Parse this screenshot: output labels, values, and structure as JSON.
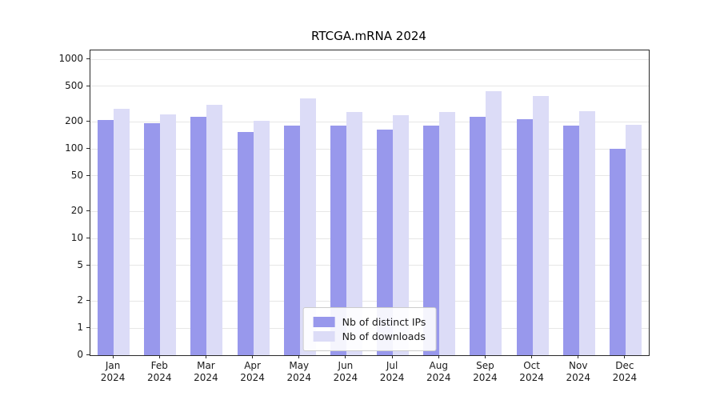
{
  "chart_data": {
    "type": "bar",
    "title": "RTCGA.mRNA 2024",
    "categories": [
      "Jan",
      "Feb",
      "Mar",
      "Apr",
      "May",
      "Jun",
      "Jul",
      "Aug",
      "Sep",
      "Oct",
      "Nov",
      "Dec"
    ],
    "year_label": "2024",
    "series": [
      {
        "name": "Nb of distinct IPs",
        "color": "#9898ec",
        "values": [
          210,
          195,
          230,
          155,
          180,
          180,
          165,
          180,
          230,
          215,
          180,
          100
        ]
      },
      {
        "name": "Nb of downloads",
        "color": "#dcdcf7",
        "values": [
          280,
          240,
          310,
          205,
          365,
          260,
          235,
          260,
          440,
          385,
          265,
          185
        ]
      }
    ],
    "yticks": [
      0,
      1,
      2,
      5,
      10,
      20,
      50,
      100,
      200,
      500,
      1000
    ],
    "ylim": [
      0,
      1000
    ],
    "yscale": "log",
    "grid": "horizontal",
    "legend_position": "bottom-center-inside"
  },
  "colors": {
    "background": "#ffffff",
    "axis": "#2a2a2a",
    "grid": "#e7e7e7",
    "text": "#1a1a1a"
  }
}
